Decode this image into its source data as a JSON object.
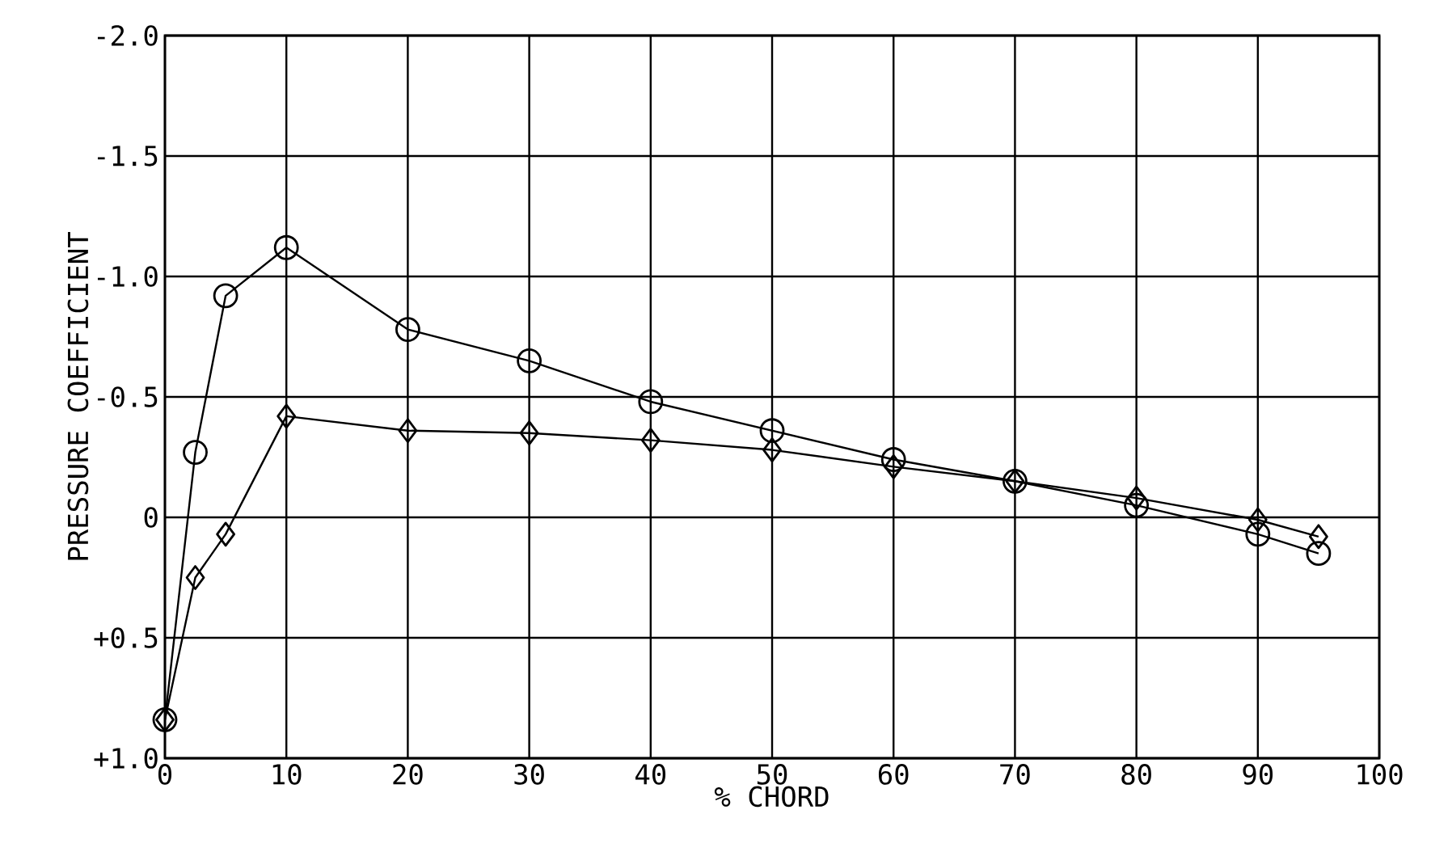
{
  "chart_data": {
    "type": "line",
    "xlabel": "% CHORD",
    "ylabel": "PRESSURE COEFFICIENT",
    "x": [
      0,
      2.5,
      5,
      10,
      20,
      30,
      40,
      50,
      60,
      70,
      80,
      90,
      95
    ],
    "series": [
      {
        "color": "#000000",
        "marker": "circle",
        "values": [
          0.84,
          -0.27,
          -0.92,
          -1.12,
          -0.78,
          -0.65,
          -0.48,
          -0.36,
          -0.24,
          -0.15,
          -0.05,
          0.07,
          0.15
        ]
      },
      {
        "color": "#000000",
        "marker": "diamond",
        "values": [
          0.84,
          0.25,
          0.07,
          -0.42,
          -0.36,
          -0.35,
          -0.32,
          -0.28,
          -0.21,
          -0.15,
          -0.08,
          0.01,
          0.08
        ]
      }
    ],
    "xlim": [
      0,
      100
    ],
    "xticks": [
      0,
      10,
      20,
      30,
      40,
      50,
      60,
      70,
      80,
      90,
      100
    ],
    "ylim": [
      1,
      -2
    ],
    "yticks": [
      {
        "value": -2,
        "label": "-2.0"
      },
      {
        "value": -1.5,
        "label": "-1.5"
      },
      {
        "value": -1,
        "label": "-1.0"
      },
      {
        "value": -0.5,
        "label": "-0.5"
      },
      {
        "value": 0,
        "label": "0"
      },
      {
        "value": 0.5,
        "label": "+0.5"
      },
      {
        "value": 1,
        "label": "+1.0"
      }
    ],
    "grid": true,
    "line_style": "solid",
    "legend": false
  }
}
